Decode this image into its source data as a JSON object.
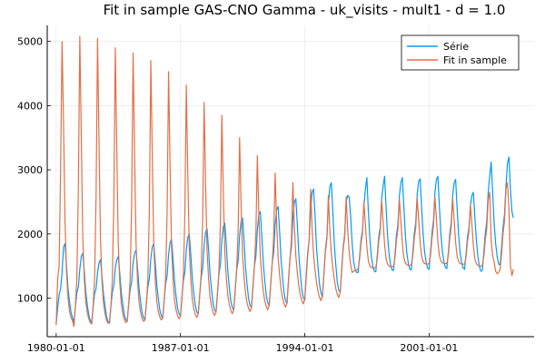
{
  "chart_data": {
    "type": "line",
    "title": "Fit in sample GAS-CNO Gamma - uk_visits - mult1 - d = 1.0",
    "xlabel": "",
    "ylabel": "",
    "x_range": [
      "1979-07-01",
      "2006-12-01"
    ],
    "ylim": [
      400,
      5250
    ],
    "x_ticks": [
      {
        "date": "1980-01-01",
        "label": "1980-01-01"
      },
      {
        "date": "1987-01-01",
        "label": "1987-01-01"
      },
      {
        "date": "1994-01-01",
        "label": "1994-01-01"
      },
      {
        "date": "2001-01-01",
        "label": "2001-01-01"
      }
    ],
    "y_ticks": [
      1000,
      2000,
      3000,
      4000,
      5000
    ],
    "grid": true,
    "legend": "top-right",
    "series": [
      {
        "name": "Série",
        "color": "#009AFA",
        "start_date": "1980-01-01",
        "values": [
          600,
          850,
          1050,
          1150,
          1400,
          1800,
          1850,
          1500,
          1150,
          950,
          780,
          700,
          620,
          880,
          1080,
          1180,
          1450,
          1650,
          1700,
          1420,
          1100,
          900,
          740,
          660,
          600,
          870,
          1070,
          1150,
          1400,
          1550,
          1600,
          1340,
          1060,
          880,
          720,
          640,
          610,
          880,
          1090,
          1200,
          1480,
          1600,
          1650,
          1390,
          1090,
          910,
          750,
          670,
          640,
          910,
          1130,
          1250,
          1550,
          1700,
          1750,
          1470,
          1150,
          950,
          780,
          700,
          660,
          950,
          1180,
          1300,
          1620,
          1800,
          1850,
          1550,
          1210,
          1000,
          820,
          730,
          690,
          980,
          1220,
          1350,
          1680,
          1870,
          1920,
          1610,
          1260,
          1040,
          850,
          760,
          720,
          1020,
          1270,
          1400,
          1750,
          1950,
          2000,
          1680,
          1310,
          1080,
          890,
          790,
          750,
          1060,
          1320,
          1460,
          1820,
          2030,
          2080,
          1750,
          1360,
          1130,
          920,
          820,
          780,
          1100,
          1370,
          1520,
          1900,
          2120,
          2170,
          1820,
          1420,
          1170,
          960,
          860,
          810,
          1150,
          1430,
          1580,
          1970,
          2200,
          2250,
          1890,
          1470,
          1220,
          1000,
          890,
          850,
          1200,
          1490,
          1650,
          2060,
          2300,
          2350,
          1970,
          1540,
          1270,
          1040,
          930,
          880,
          1240,
          1540,
          1710,
          2130,
          2380,
          2430,
          2040,
          1590,
          1320,
          1080,
          960,
          920,
          1300,
          1610,
          1790,
          2240,
          2500,
          2550,
          2140,
          1670,
          1380,
          1130,
          1010,
          970,
          1380,
          1710,
          1900,
          2370,
          2650,
          2700,
          2270,
          1770,
          1470,
          1210,
          1080,
          1020,
          1420,
          1760,
          1960,
          2450,
          2740,
          2800,
          2350,
          1840,
          1520,
          1250,
          1120,
          1100,
          1480,
          1800,
          2000,
          2500,
          2600,
          2580,
          2280,
          1850,
          1580,
          1450,
          1400,
          1400,
          1650,
          1900,
          2050,
          2450,
          2700,
          2880,
          2350,
          1920,
          1650,
          1500,
          1420,
          1410,
          1680,
          1950,
          2100,
          2550,
          2750,
          2900,
          2400,
          1950,
          1680,
          1520,
          1440,
          1430,
          1700,
          1980,
          2150,
          2600,
          2800,
          2880,
          2420,
          1980,
          1700,
          1540,
          1450,
          1440,
          1720,
          2000,
          2180,
          2620,
          2820,
          2860,
          2400,
          1990,
          1720,
          1560,
          1470,
          1450,
          1730,
          2010,
          2200,
          2650,
          2850,
          2900,
          2430,
          2000,
          1730,
          1570,
          1480,
          1460,
          1720,
          1990,
          2180,
          2600,
          2800,
          2850,
          2390,
          1980,
          1710,
          1560,
          1470,
          1450,
          1700,
          1950,
          2100,
          2450,
          2600,
          2650,
          2250,
          1900,
          1650,
          1500,
          1420,
          1430,
          1720,
          2000,
          2200,
          2650,
          2900,
          3120,
          2650,
          2150,
          1850,
          1650,
          1530,
          1520,
          1800,
          2100,
          2300,
          2750,
          3100,
          3200,
          2700,
          2350,
          2250
        ]
      },
      {
        "name": "Fit in sample",
        "color": "#E26F46",
        "start_date": "1980-01-01",
        "values": [
          580,
          1300,
          1500,
          3000,
          5000,
          3700,
          2200,
          1400,
          1000,
          800,
          700,
          650,
          560,
          900,
          1300,
          2700,
          5080,
          3500,
          1950,
          1300,
          950,
          780,
          680,
          620,
          600,
          900,
          1300,
          2600,
          5050,
          3400,
          1900,
          1250,
          920,
          760,
          660,
          610,
          620,
          900,
          1280,
          2500,
          4900,
          3300,
          1850,
          1250,
          920,
          760,
          670,
          620,
          640,
          920,
          1280,
          2450,
          4820,
          3250,
          1850,
          1260,
          940,
          780,
          690,
          640,
          660,
          940,
          1300,
          2400,
          4700,
          3150,
          1820,
          1270,
          950,
          800,
          710,
          660,
          690,
          970,
          1320,
          2350,
          4530,
          3050,
          1800,
          1280,
          970,
          820,
          730,
          680,
          720,
          1000,
          1350,
          2300,
          4320,
          2900,
          1770,
          1290,
          990,
          840,
          750,
          700,
          750,
          1040,
          1380,
          2200,
          4050,
          2750,
          1740,
          1300,
          1010,
          870,
          780,
          730,
          780,
          1080,
          1410,
          2150,
          3850,
          2620,
          1710,
          1310,
          1040,
          900,
          810,
          760,
          820,
          1120,
          1450,
          2050,
          3500,
          2450,
          1680,
          1320,
          1070,
          930,
          840,
          790,
          860,
          1170,
          1490,
          2000,
          3220,
          2300,
          1660,
          1340,
          1100,
          960,
          870,
          820,
          900,
          1220,
          1540,
          1950,
          2950,
          2180,
          1650,
          1360,
          1140,
          1000,
          910,
          860,
          940,
          1270,
          1590,
          1920,
          2800,
          2120,
          1660,
          1390,
          1190,
          1050,
          960,
          910,
          990,
          1330,
          1660,
          1910,
          2700,
          2080,
          1680,
          1430,
          1240,
          1100,
          1010,
          960,
          1050,
          1400,
          1720,
          1920,
          2600,
          2060,
          1700,
          1470,
          1290,
          1150,
          1060,
          1010,
          1100,
          1450,
          1770,
          1950,
          2580,
          2080,
          1730,
          1520,
          1400,
          1420,
          1430,
          1440,
          1460,
          1600,
          1850,
          2000,
          2500,
          2150,
          1800,
          1580,
          1500,
          1480,
          1470,
          1470,
          1480,
          1620,
          1880,
          2050,
          2520,
          2180,
          1830,
          1610,
          1530,
          1500,
          1490,
          1490,
          1500,
          1640,
          1900,
          2080,
          2540,
          2200,
          1850,
          1630,
          1550,
          1520,
          1510,
          1510,
          1520,
          1660,
          1920,
          2100,
          2560,
          2220,
          1870,
          1650,
          1570,
          1540,
          1530,
          1530,
          1540,
          1680,
          1930,
          2120,
          2580,
          2240,
          1880,
          1660,
          1580,
          1550,
          1540,
          1540,
          1540,
          1670,
          1920,
          2100,
          2550,
          2210,
          1870,
          1650,
          1570,
          1540,
          1530,
          1530,
          1530,
          1650,
          1880,
          2050,
          2450,
          2150,
          1820,
          1610,
          1540,
          1510,
          1500,
          1500,
          1510,
          1650,
          1900,
          2080,
          2530,
          2650,
          1900,
          1660,
          1560,
          1420,
          1380,
          1400,
          1450,
          1700,
          2000,
          2200,
          2700,
          2800,
          2400,
          1500,
          1350,
          1450
        ]
      }
    ]
  }
}
